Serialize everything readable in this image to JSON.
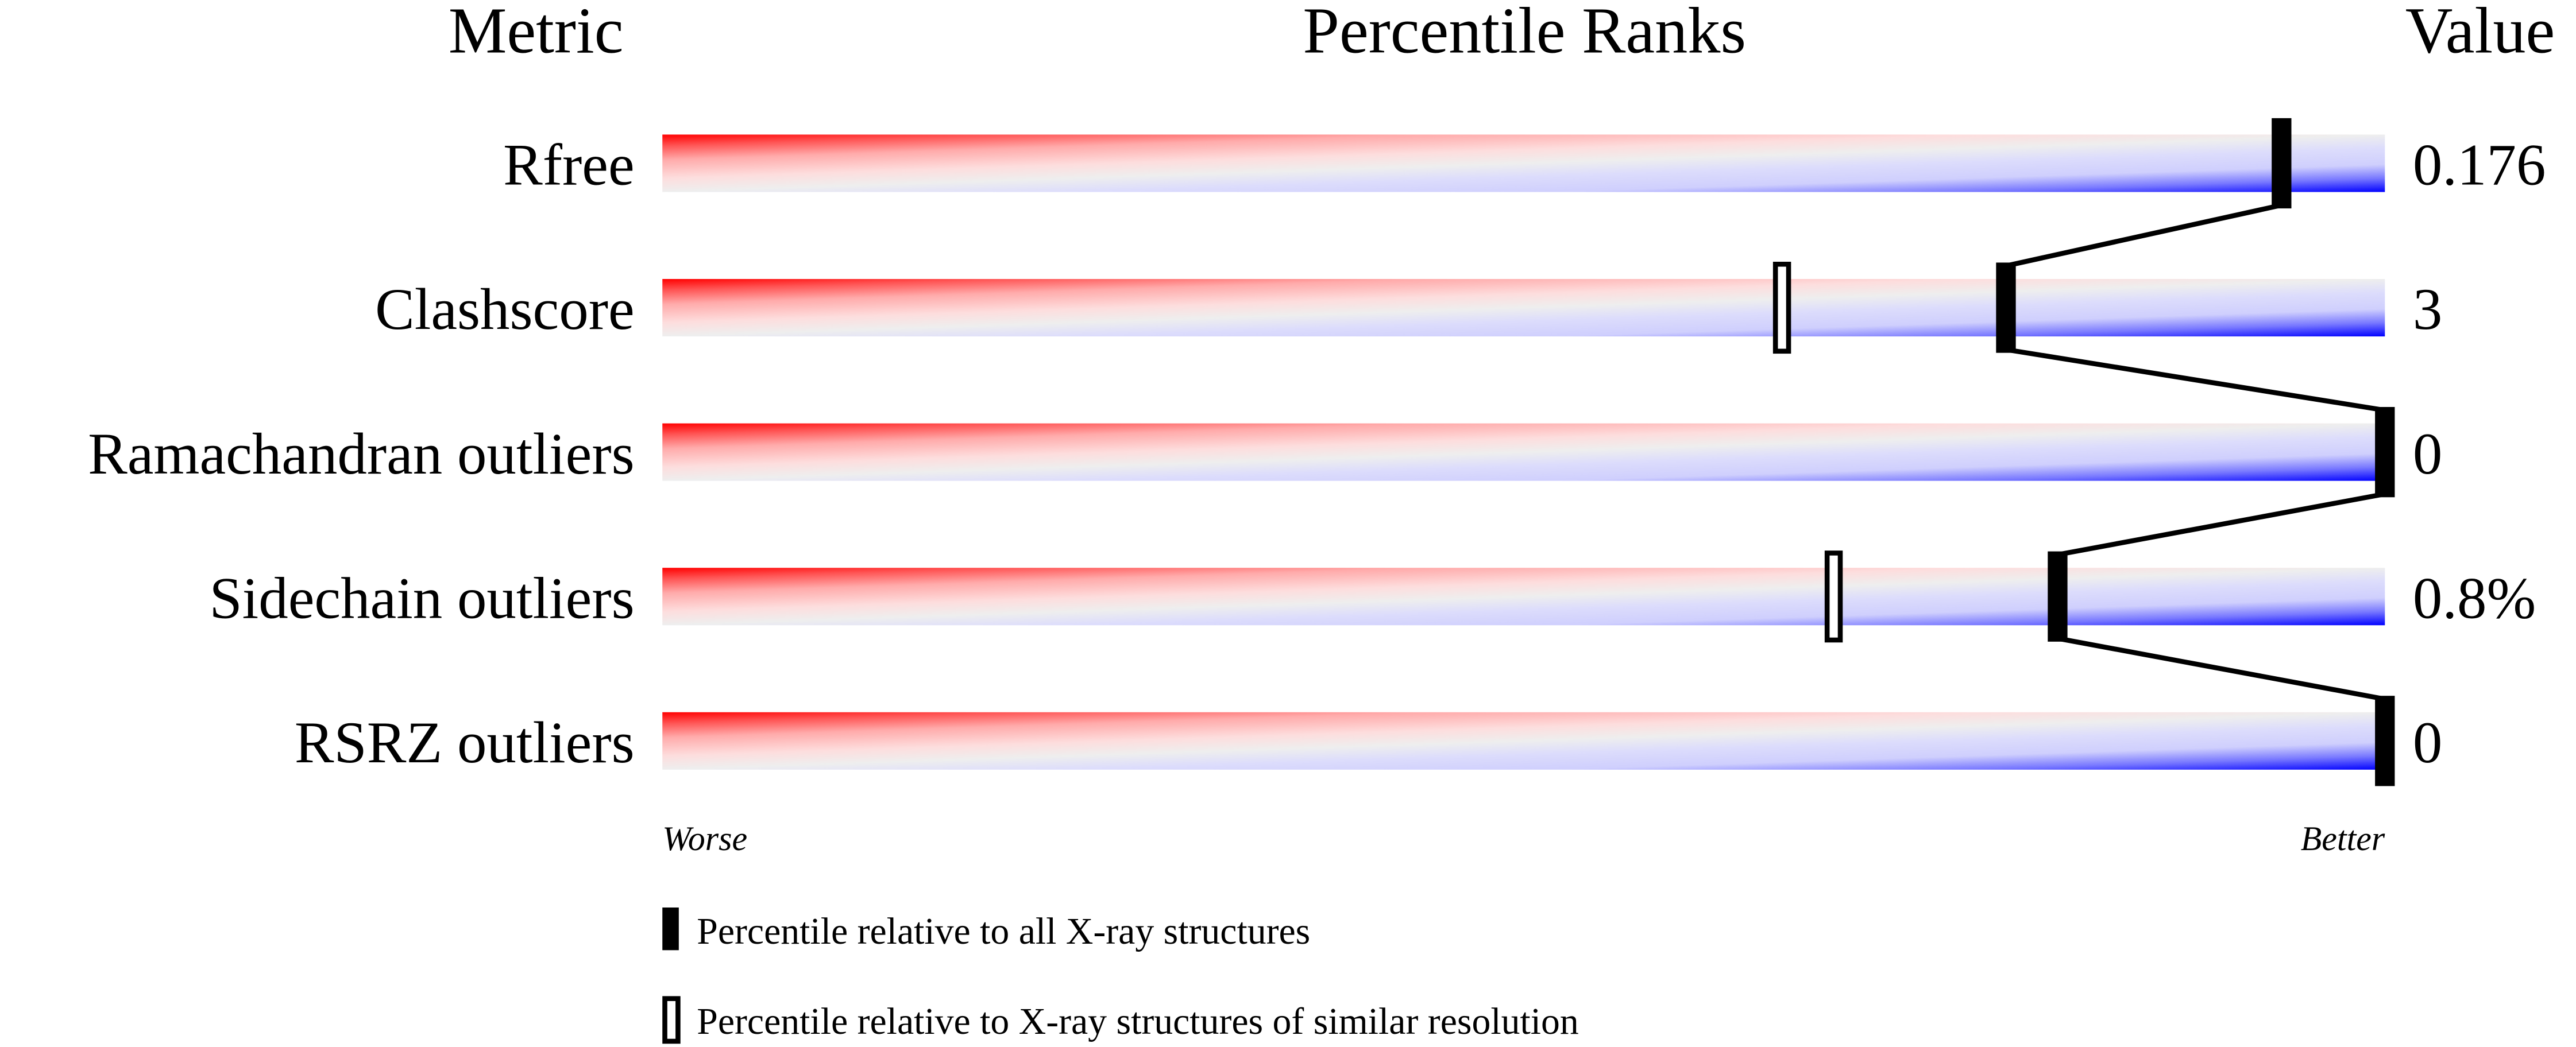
{
  "chart_data": {
    "type": "percentile-bar",
    "headers": {
      "metric": "Metric",
      "ranks": "Percentile Ranks",
      "value": "Value"
    },
    "xlim": [
      0,
      100
    ],
    "axis_labels": {
      "left": "Worse",
      "right": "Better"
    },
    "metrics": [
      {
        "name": "Rfree",
        "value": "0.176",
        "percentile_all": 94,
        "percentile_similar": null
      },
      {
        "name": "Clashscore",
        "value": "3",
        "percentile_all": 78,
        "percentile_similar": 65
      },
      {
        "name": "Ramachandran outliers",
        "value": "0",
        "percentile_all": 100,
        "percentile_similar": null
      },
      {
        "name": "Sidechain outliers",
        "value": "0.8%",
        "percentile_all": 81,
        "percentile_similar": 68
      },
      {
        "name": "RSRZ outliers",
        "value": "0",
        "percentile_all": 100,
        "percentile_similar": null
      }
    ],
    "legend": [
      {
        "marker": "filled",
        "label": "Percentile relative to all X-ray structures"
      },
      {
        "marker": "open",
        "label": "Percentile relative to X-ray structures of similar resolution"
      }
    ],
    "colors": {
      "worse": "#ff0000",
      "middle": "#eeeeee",
      "better": "#0000ff",
      "marker": "#000000"
    }
  }
}
